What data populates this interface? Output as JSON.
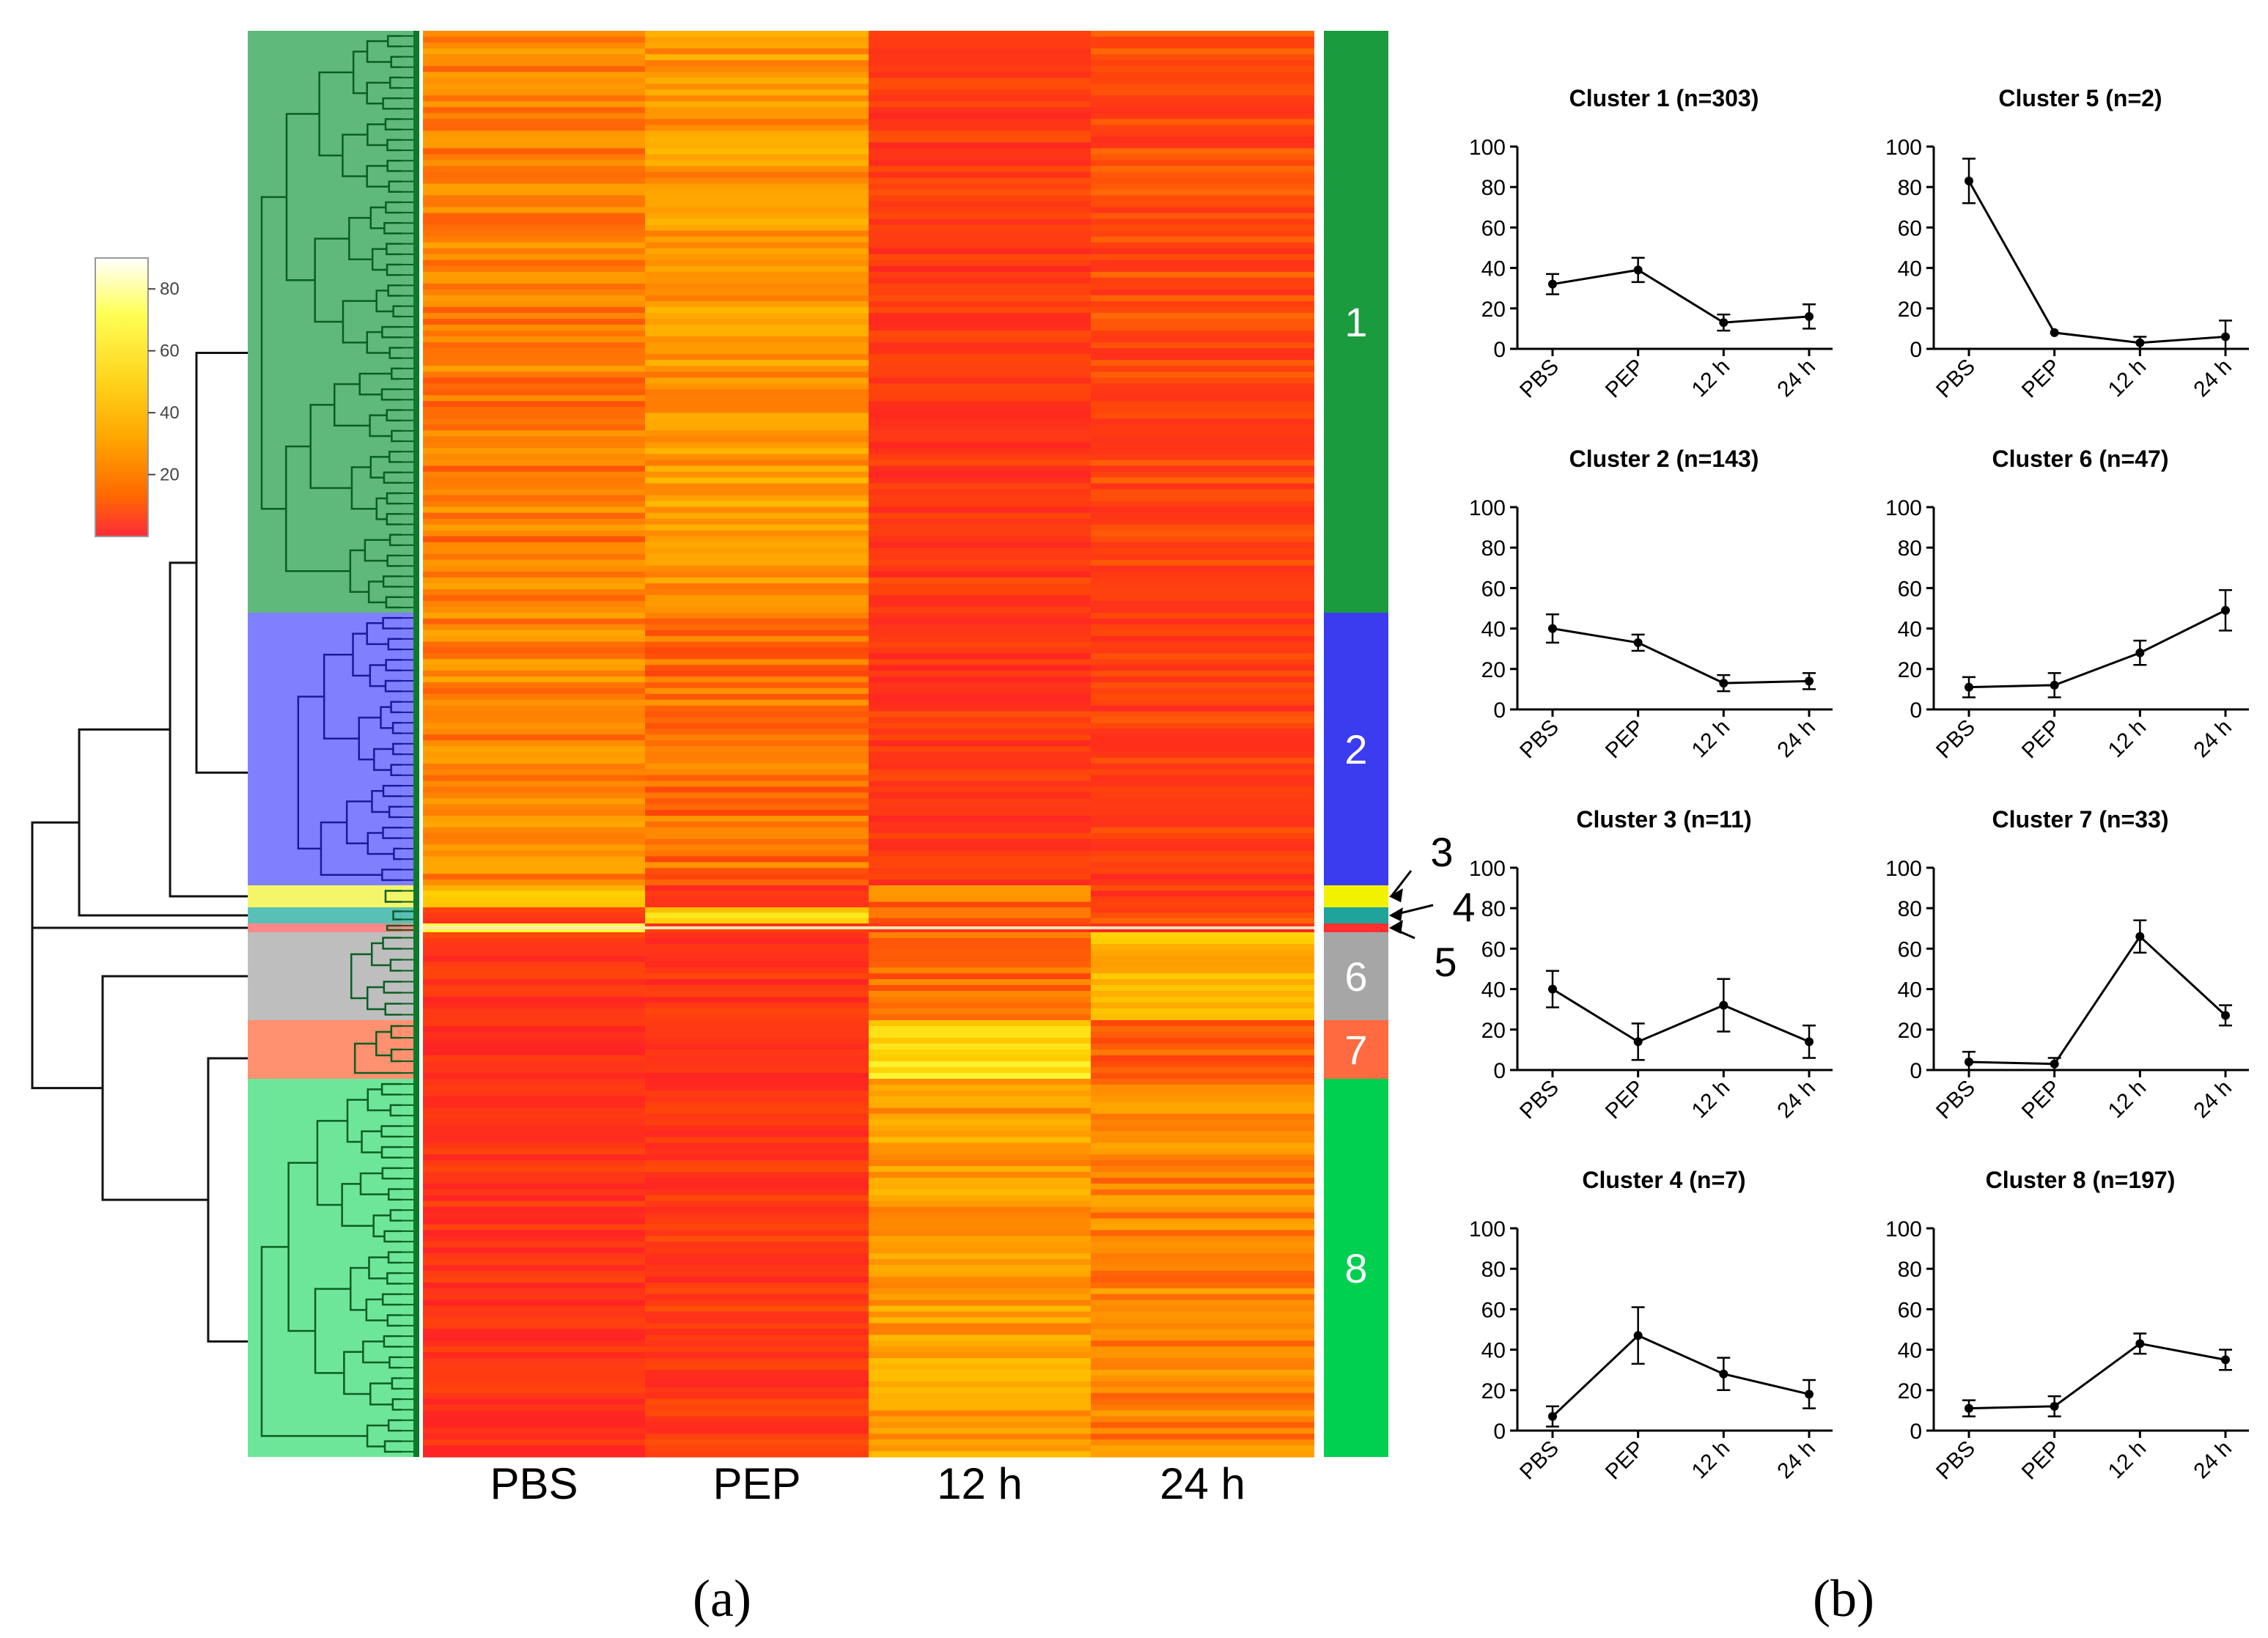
{
  "panel_labels": {
    "a": "(a)",
    "b": "(b)"
  },
  "heatmap": {
    "columns": [
      "PBS",
      "PEP",
      "12 h",
      "24 h"
    ],
    "colorscale": {
      "ticks": [
        "80",
        "60",
        "40",
        "20"
      ],
      "colors": [
        "#ffffff",
        "#ffff55",
        "#ffd700",
        "#ffa500",
        "#ff6a00",
        "#ff2020"
      ]
    },
    "clusters": [
      {
        "id": "1",
        "label": "1",
        "color": "#1a9b3e",
        "shade": "#5fb97a",
        "means": [
          34,
          42,
          12,
          18
        ]
      },
      {
        "id": "2",
        "label": "2",
        "color": "#3b3bf0",
        "shade": "#8080ff",
        "means": [
          36,
          30,
          12,
          14
        ]
      },
      {
        "id": "3",
        "label": "3",
        "color": "#f2f200",
        "shade": "#f5f56a",
        "means": [
          50,
          10,
          30,
          12
        ]
      },
      {
        "id": "4",
        "label": "4",
        "color": "#1fa39a",
        "shade": "#58c0b5",
        "means": [
          10,
          60,
          28,
          18
        ]
      },
      {
        "id": "5",
        "label": "5",
        "color": "#ff3030",
        "shade": "#ff8888",
        "means": [
          80,
          8,
          4,
          6
        ]
      },
      {
        "id": "6",
        "label": "6",
        "color": "#a6a6a6",
        "shade": "#bebebe",
        "means": [
          10,
          10,
          28,
          52
        ]
      },
      {
        "id": "7",
        "label": "7",
        "color": "#ff6a40",
        "shade": "#ff9070",
        "means": [
          4,
          4,
          68,
          28
        ]
      },
      {
        "id": "8",
        "label": "8",
        "color": "#00d050",
        "shade": "#6ee69a",
        "means": [
          10,
          12,
          44,
          36
        ]
      }
    ]
  },
  "chart_data": [
    {
      "type": "line",
      "title": "Cluster 1 (n=303)",
      "categories": [
        "PBS",
        "PEP",
        "12 h",
        "24 h"
      ],
      "values": [
        32,
        39,
        13,
        16
      ],
      "errors": [
        5,
        6,
        4,
        6
      ],
      "ylim": [
        0,
        100
      ],
      "yticks": [
        "0",
        "20",
        "40",
        "60",
        "80",
        "100"
      ]
    },
    {
      "type": "line",
      "title": "Cluster 5 (n=2)",
      "categories": [
        "PBS",
        "PEP",
        "12 h",
        "24 h"
      ],
      "values": [
        83,
        8,
        3,
        6
      ],
      "errors": [
        11,
        0,
        3,
        8
      ],
      "ylim": [
        0,
        100
      ],
      "yticks": [
        "0",
        "20",
        "40",
        "60",
        "80",
        "100"
      ]
    },
    {
      "type": "line",
      "title": "Cluster 2 (n=143)",
      "categories": [
        "PBS",
        "PEP",
        "12 h",
        "24 h"
      ],
      "values": [
        40,
        33,
        13,
        14
      ],
      "errors": [
        7,
        4,
        4,
        4
      ],
      "ylim": [
        0,
        100
      ],
      "yticks": [
        "0",
        "20",
        "40",
        "60",
        "80",
        "100"
      ]
    },
    {
      "type": "line",
      "title": "Cluster 6 (n=47)",
      "categories": [
        "PBS",
        "PEP",
        "12 h",
        "24 h"
      ],
      "values": [
        11,
        12,
        28,
        49
      ],
      "errors": [
        5,
        6,
        6,
        10
      ],
      "ylim": [
        0,
        100
      ],
      "yticks": [
        "0",
        "20",
        "40",
        "60",
        "80",
        "100"
      ]
    },
    {
      "type": "line",
      "title": "Cluster 3 (n=11)",
      "categories": [
        "PBS",
        "PEP",
        "12 h",
        "24 h"
      ],
      "values": [
        40,
        14,
        32,
        14
      ],
      "errors": [
        9,
        9,
        13,
        8
      ],
      "ylim": [
        0,
        100
      ],
      "yticks": [
        "0",
        "20",
        "40",
        "60",
        "80",
        "100"
      ]
    },
    {
      "type": "line",
      "title": "Cluster 7 (n=33)",
      "categories": [
        "PBS",
        "PEP",
        "12 h",
        "24 h"
      ],
      "values": [
        4,
        3,
        66,
        27
      ],
      "errors": [
        5,
        3,
        8,
        5
      ],
      "ylim": [
        0,
        100
      ],
      "yticks": [
        "0",
        "20",
        "40",
        "60",
        "80",
        "100"
      ]
    },
    {
      "type": "line",
      "title": "Cluster 4 (n=7)",
      "categories": [
        "PBS",
        "PEP",
        "12 h",
        "24 h"
      ],
      "values": [
        7,
        47,
        28,
        18
      ],
      "errors": [
        5,
        14,
        8,
        7
      ],
      "ylim": [
        0,
        100
      ],
      "yticks": [
        "0",
        "20",
        "40",
        "60",
        "80",
        "100"
      ]
    },
    {
      "type": "line",
      "title": "Cluster 8 (n=197)",
      "categories": [
        "PBS",
        "PEP",
        "12 h",
        "24 h"
      ],
      "values": [
        11,
        12,
        43,
        35
      ],
      "errors": [
        4,
        5,
        5,
        5
      ],
      "ylim": [
        0,
        100
      ],
      "yticks": [
        "0",
        "20",
        "40",
        "60",
        "80",
        "100"
      ]
    }
  ]
}
